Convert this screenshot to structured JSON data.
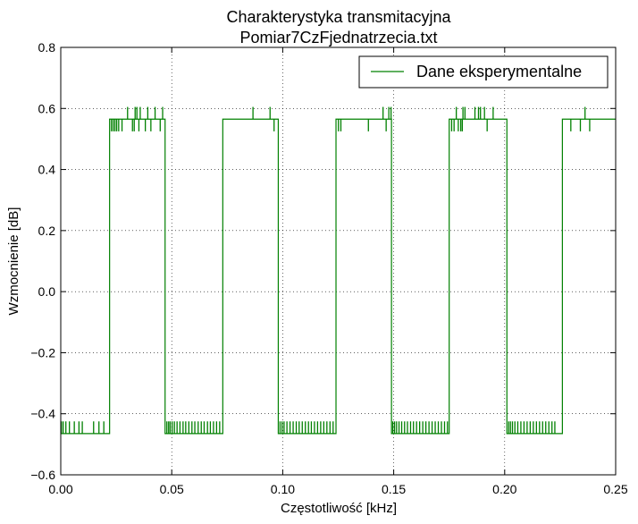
{
  "chart_data": {
    "type": "line",
    "title": [
      "Charakterystyka transmitacyjna",
      "Pomiar7CzFjednatrzecia.txt"
    ],
    "xlabel": "Częstotliwość [kHz]",
    "ylabel": "Wzmocnienie [dB]",
    "xlim": [
      0.0,
      0.25
    ],
    "ylim": [
      -0.6,
      0.8
    ],
    "xticks": [
      0.0,
      0.05,
      0.1,
      0.15,
      0.2,
      0.25
    ],
    "xtick_labels": [
      "0.00",
      "0.05",
      "0.10",
      "0.15",
      "0.20",
      "0.25"
    ],
    "yticks": [
      -0.6,
      -0.4,
      -0.2,
      0.0,
      0.2,
      0.4,
      0.6,
      0.8
    ],
    "ytick_labels": [
      "−0.6",
      "−0.4",
      "−0.2",
      "0.0",
      "0.2",
      "0.4",
      "0.6",
      "0.8"
    ],
    "grid": true,
    "legend_position": "top-right",
    "series": [
      {
        "name": "Dane eksperymentalne",
        "color": "#008000",
        "baseline_low": -0.465,
        "baseline_high": 0.565,
        "noise_low_levels": [
          -0.465,
          -0.425
        ],
        "noise_high_levels": [
          0.565,
          0.605,
          0.525
        ],
        "segments": [
          {
            "x0": 0.0,
            "x1": 0.022,
            "level": "low"
          },
          {
            "x0": 0.022,
            "x1": 0.047,
            "level": "high"
          },
          {
            "x0": 0.047,
            "x1": 0.073,
            "level": "low"
          },
          {
            "x0": 0.073,
            "x1": 0.098,
            "level": "high"
          },
          {
            "x0": 0.098,
            "x1": 0.124,
            "level": "low"
          },
          {
            "x0": 0.124,
            "x1": 0.149,
            "level": "high"
          },
          {
            "x0": 0.149,
            "x1": 0.175,
            "level": "low"
          },
          {
            "x0": 0.175,
            "x1": 0.201,
            "level": "high"
          },
          {
            "x0": 0.201,
            "x1": 0.226,
            "level": "low"
          },
          {
            "x0": 0.226,
            "x1": 0.25,
            "level": "high"
          }
        ],
        "spikes": [
          {
            "x": 0.0003,
            "y": -0.425
          },
          {
            "x": 0.0011,
            "y": -0.425
          },
          {
            "x": 0.0023,
            "y": -0.425
          },
          {
            "x": 0.0039,
            "y": -0.425
          },
          {
            "x": 0.0061,
            "y": -0.425
          },
          {
            "x": 0.0082,
            "y": -0.425
          },
          {
            "x": 0.0097,
            "y": -0.425
          },
          {
            "x": 0.0148,
            "y": -0.425
          },
          {
            "x": 0.0172,
            "y": -0.425
          },
          {
            "x": 0.0194,
            "y": -0.425
          },
          {
            "x": 0.0228,
            "y": 0.525
          },
          {
            "x": 0.0236,
            "y": 0.525
          },
          {
            "x": 0.0244,
            "y": 0.525
          },
          {
            "x": 0.0252,
            "y": 0.525
          },
          {
            "x": 0.0261,
            "y": 0.525
          },
          {
            "x": 0.0276,
            "y": 0.525
          },
          {
            "x": 0.0301,
            "y": 0.605
          },
          {
            "x": 0.0323,
            "y": 0.525
          },
          {
            "x": 0.0331,
            "y": 0.525
          },
          {
            "x": 0.0335,
            "y": 0.605
          },
          {
            "x": 0.0343,
            "y": 0.605
          },
          {
            "x": 0.0352,
            "y": 0.525
          },
          {
            "x": 0.0358,
            "y": 0.605
          },
          {
            "x": 0.0381,
            "y": 0.525
          },
          {
            "x": 0.0392,
            "y": 0.605
          },
          {
            "x": 0.0406,
            "y": 0.525
          },
          {
            "x": 0.0425,
            "y": 0.605
          },
          {
            "x": 0.0448,
            "y": 0.525
          },
          {
            "x": 0.0459,
            "y": 0.605
          },
          {
            "x": 0.0478,
            "y": -0.425
          },
          {
            "x": 0.0486,
            "y": -0.425
          },
          {
            "x": 0.0493,
            "y": -0.425
          },
          {
            "x": 0.0502,
            "y": -0.425
          },
          {
            "x": 0.0512,
            "y": -0.425
          },
          {
            "x": 0.0524,
            "y": -0.425
          },
          {
            "x": 0.0537,
            "y": -0.425
          },
          {
            "x": 0.0551,
            "y": -0.425
          },
          {
            "x": 0.0563,
            "y": -0.425
          },
          {
            "x": 0.0577,
            "y": -0.425
          },
          {
            "x": 0.0591,
            "y": -0.425
          },
          {
            "x": 0.0604,
            "y": -0.425
          },
          {
            "x": 0.0619,
            "y": -0.425
          },
          {
            "x": 0.0633,
            "y": -0.425
          },
          {
            "x": 0.0646,
            "y": -0.425
          },
          {
            "x": 0.0661,
            "y": -0.425
          },
          {
            "x": 0.0674,
            "y": -0.425
          },
          {
            "x": 0.0688,
            "y": -0.425
          },
          {
            "x": 0.0702,
            "y": -0.425
          },
          {
            "x": 0.0716,
            "y": -0.425
          },
          {
            "x": 0.0866,
            "y": 0.605
          },
          {
            "x": 0.0943,
            "y": 0.605
          },
          {
            "x": 0.0961,
            "y": 0.525
          },
          {
            "x": 0.0988,
            "y": -0.425
          },
          {
            "x": 0.0997,
            "y": -0.425
          },
          {
            "x": 0.1006,
            "y": -0.425
          },
          {
            "x": 0.1019,
            "y": -0.425
          },
          {
            "x": 0.1033,
            "y": -0.425
          },
          {
            "x": 0.1047,
            "y": -0.425
          },
          {
            "x": 0.1061,
            "y": -0.425
          },
          {
            "x": 0.1074,
            "y": -0.425
          },
          {
            "x": 0.1088,
            "y": -0.425
          },
          {
            "x": 0.1102,
            "y": -0.425
          },
          {
            "x": 0.1116,
            "y": -0.425
          },
          {
            "x": 0.1129,
            "y": -0.425
          },
          {
            "x": 0.1143,
            "y": -0.425
          },
          {
            "x": 0.1157,
            "y": -0.425
          },
          {
            "x": 0.1171,
            "y": -0.425
          },
          {
            "x": 0.1185,
            "y": -0.425
          },
          {
            "x": 0.1199,
            "y": -0.425
          },
          {
            "x": 0.1213,
            "y": -0.425
          },
          {
            "x": 0.1227,
            "y": -0.425
          },
          {
            "x": 0.1251,
            "y": 0.525
          },
          {
            "x": 0.1262,
            "y": 0.525
          },
          {
            "x": 0.1386,
            "y": 0.525
          },
          {
            "x": 0.1452,
            "y": 0.605
          },
          {
            "x": 0.1466,
            "y": 0.525
          },
          {
            "x": 0.1478,
            "y": 0.605
          },
          {
            "x": 0.1488,
            "y": 0.605
          },
          {
            "x": 0.1496,
            "y": -0.425
          },
          {
            "x": 0.1504,
            "y": -0.425
          },
          {
            "x": 0.1513,
            "y": -0.425
          },
          {
            "x": 0.1524,
            "y": -0.425
          },
          {
            "x": 0.1536,
            "y": -0.425
          },
          {
            "x": 0.1549,
            "y": -0.425
          },
          {
            "x": 0.1562,
            "y": -0.425
          },
          {
            "x": 0.1576,
            "y": -0.425
          },
          {
            "x": 0.1589,
            "y": -0.425
          },
          {
            "x": 0.1603,
            "y": -0.425
          },
          {
            "x": 0.1617,
            "y": -0.425
          },
          {
            "x": 0.1631,
            "y": -0.425
          },
          {
            "x": 0.1645,
            "y": -0.425
          },
          {
            "x": 0.1659,
            "y": -0.425
          },
          {
            "x": 0.1673,
            "y": -0.425
          },
          {
            "x": 0.1687,
            "y": -0.425
          },
          {
            "x": 0.1701,
            "y": -0.425
          },
          {
            "x": 0.1715,
            "y": -0.425
          },
          {
            "x": 0.1729,
            "y": -0.425
          },
          {
            "x": 0.1742,
            "y": -0.425
          },
          {
            "x": 0.1761,
            "y": 0.525
          },
          {
            "x": 0.1772,
            "y": 0.525
          },
          {
            "x": 0.1782,
            "y": 0.605
          },
          {
            "x": 0.1791,
            "y": 0.525
          },
          {
            "x": 0.1802,
            "y": 0.525
          },
          {
            "x": 0.1809,
            "y": 0.525
          },
          {
            "x": 0.1812,
            "y": 0.605
          },
          {
            "x": 0.1821,
            "y": 0.605
          },
          {
            "x": 0.1866,
            "y": 0.605
          },
          {
            "x": 0.1882,
            "y": 0.605
          },
          {
            "x": 0.1891,
            "y": 0.605
          },
          {
            "x": 0.1909,
            "y": 0.605
          },
          {
            "x": 0.1921,
            "y": 0.525
          },
          {
            "x": 0.1948,
            "y": 0.605
          },
          {
            "x": 0.2018,
            "y": -0.425
          },
          {
            "x": 0.2026,
            "y": -0.425
          },
          {
            "x": 0.2035,
            "y": -0.425
          },
          {
            "x": 0.2046,
            "y": -0.425
          },
          {
            "x": 0.2059,
            "y": -0.425
          },
          {
            "x": 0.2073,
            "y": -0.425
          },
          {
            "x": 0.2087,
            "y": -0.425
          },
          {
            "x": 0.2101,
            "y": -0.425
          },
          {
            "x": 0.2115,
            "y": -0.425
          },
          {
            "x": 0.2129,
            "y": -0.425
          },
          {
            "x": 0.2143,
            "y": -0.425
          },
          {
            "x": 0.2157,
            "y": -0.425
          },
          {
            "x": 0.2171,
            "y": -0.425
          },
          {
            "x": 0.2185,
            "y": -0.425
          },
          {
            "x": 0.2199,
            "y": -0.425
          },
          {
            "x": 0.2213,
            "y": -0.425
          },
          {
            "x": 0.2226,
            "y": -0.425
          },
          {
            "x": 0.2298,
            "y": 0.525
          },
          {
            "x": 0.2341,
            "y": 0.525
          },
          {
            "x": 0.2362,
            "y": 0.605
          },
          {
            "x": 0.2383,
            "y": 0.525
          }
        ]
      }
    ]
  }
}
